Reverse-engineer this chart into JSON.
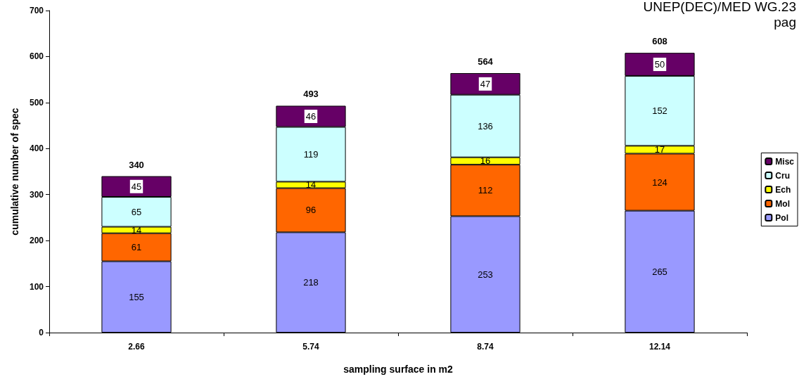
{
  "chart_data": {
    "type": "bar",
    "stacked": true,
    "xlabel": "sampling surface in m2",
    "ylabel": "cumulative number of spec",
    "categories": [
      "2.66",
      "5.74",
      "8.74",
      "12.14"
    ],
    "series": [
      {
        "name": "Pol",
        "color": "#9999ff",
        "values": [
          155,
          218,
          253,
          265
        ]
      },
      {
        "name": "Mol",
        "color": "#ff6600",
        "values": [
          61,
          96,
          112,
          124
        ]
      },
      {
        "name": "Ech",
        "color": "#ffff00",
        "values": [
          14,
          14,
          16,
          17
        ]
      },
      {
        "name": "Cru",
        "color": "#ccffff",
        "values": [
          65,
          119,
          136,
          152
        ]
      },
      {
        "name": "Misc",
        "color": "#660066",
        "values": [
          45,
          46,
          47,
          50
        ]
      }
    ],
    "totals": [
      "340",
      "493",
      "564",
      "608"
    ],
    "data_labels": true,
    "ylim": [
      0,
      700
    ],
    "yticks": [
      0,
      100,
      200,
      300,
      400,
      500,
      600,
      700
    ],
    "grid": false,
    "legend": "right",
    "annotations": [
      "UNEP(DEC)/MED WG.23",
      "pag"
    ]
  }
}
